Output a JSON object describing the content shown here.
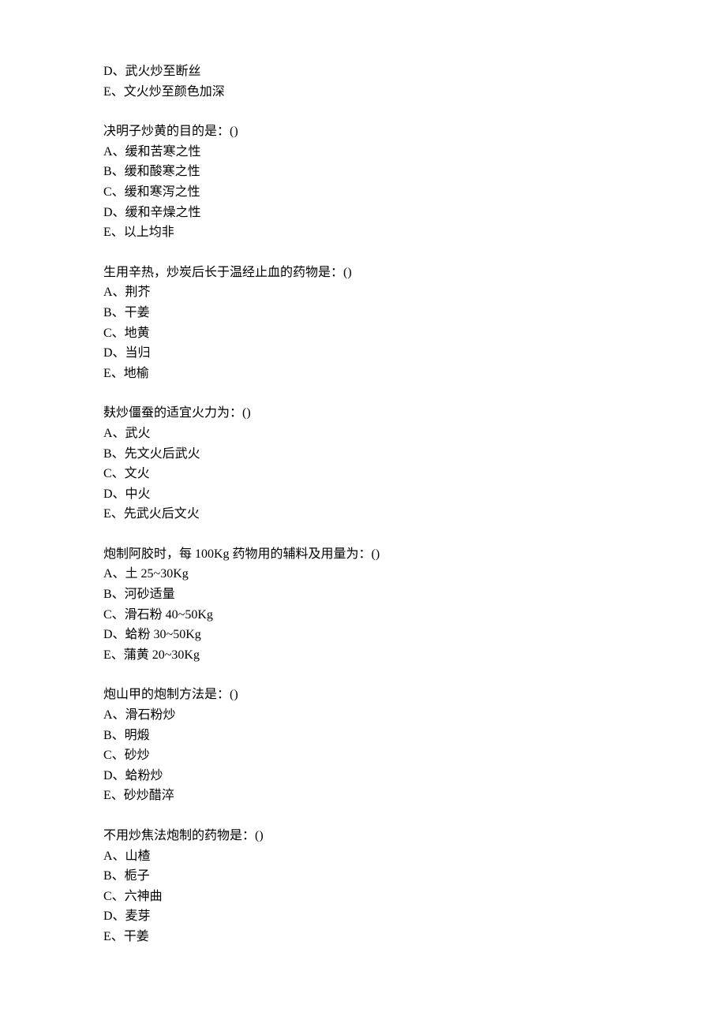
{
  "fragment": {
    "options": [
      "D、武火炒至断丝",
      "E、文火炒至颜色加深"
    ]
  },
  "questions": [
    {
      "text": "决明子炒黄的目的是：()",
      "options": [
        "A、缓和苦寒之性",
        "B、缓和酸寒之性",
        "C、缓和寒泻之性",
        "D、缓和辛燥之性",
        "E、以上均非"
      ]
    },
    {
      "text": "生用辛热，炒炭后长于温经止血的药物是：()",
      "options": [
        "A、荆芥",
        "B、干姜",
        "C、地黄",
        "D、当归",
        "E、地榆"
      ]
    },
    {
      "text": "麸炒僵蚕的适宜火力为：()",
      "options": [
        "A、武火",
        "B、先文火后武火",
        "C、文火",
        "D、中火",
        "E、先武火后文火"
      ]
    },
    {
      "text": "炮制阿胶时，每 100Kg 药物用的辅料及用量为：()",
      "options": [
        "A、土 25~30Kg",
        "B、河砂适量",
        "C、滑石粉 40~50Kg",
        "D、蛤粉 30~50Kg",
        "E、蒲黄 20~30Kg"
      ]
    },
    {
      "text": "炮山甲的炮制方法是：()",
      "options": [
        "A、滑石粉炒",
        "B、明煅",
        "C、砂炒",
        "D、蛤粉炒",
        "E、砂炒醋淬"
      ]
    },
    {
      "text": "不用炒焦法炮制的药物是：()",
      "options": [
        "A、山楂",
        "B、栀子",
        "C、六神曲",
        "D、麦芽",
        "E、干姜"
      ]
    }
  ]
}
